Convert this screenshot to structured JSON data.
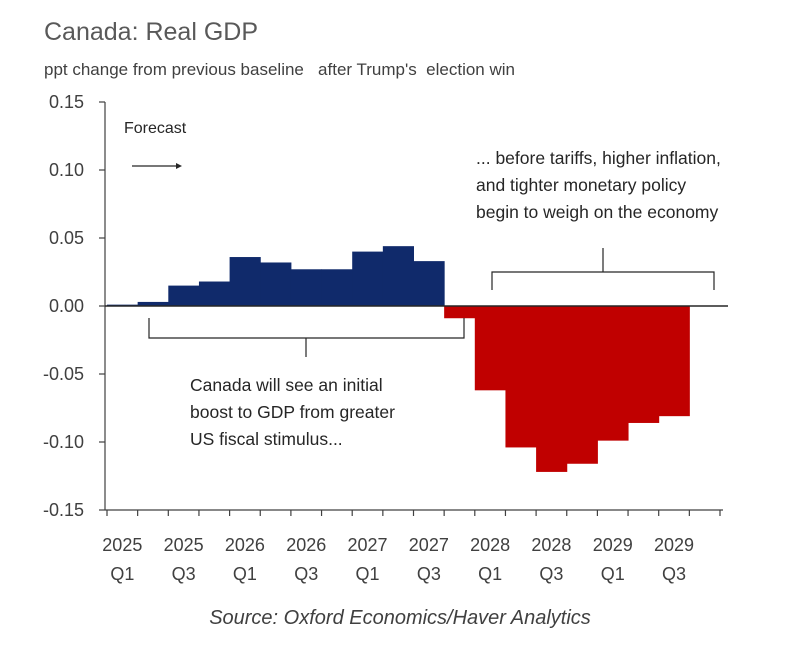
{
  "title": "Canada: Real GDP",
  "subtitle": "ppt change from previous baseline   after Trump's  election win",
  "source": "Source: Oxford Economics/Haver Analytics",
  "annotations": {
    "forecast": "Forecast",
    "left_lines": [
      "Canada will see an initial",
      "boost to GDP from greater",
      "US fiscal stimulus..."
    ],
    "right_lines": [
      "... before  tariffs, higher inflation,",
      "and tighter monetary policy",
      "begin to weigh on the economy"
    ]
  },
  "colors": {
    "positive": "#102a6b",
    "negative": "#c00000",
    "axis": "#404040"
  },
  "chart_data": {
    "type": "bar",
    "title": "Canada: Real GDP",
    "subtitle": "ppt change from previous baseline   after Trump's  election win",
    "ylim": [
      -0.15,
      0.15
    ],
    "yticks": [
      "0.15",
      "0.10",
      "0.05",
      "0.00",
      "-0.05",
      "-0.10",
      "-0.15"
    ],
    "ytick_values": [
      0.15,
      0.1,
      0.05,
      0.0,
      -0.05,
      -0.1,
      -0.15
    ],
    "xtick_labels": [
      [
        "2025",
        "Q1"
      ],
      [
        "2025",
        "Q3"
      ],
      [
        "2026",
        "Q1"
      ],
      [
        "2026",
        "Q3"
      ],
      [
        "2027",
        "Q1"
      ],
      [
        "2027",
        "Q3"
      ],
      [
        "2028",
        "Q1"
      ],
      [
        "2028",
        "Q3"
      ],
      [
        "2029",
        "Q1"
      ],
      [
        "2029",
        "Q3"
      ]
    ],
    "categories": [
      "2025 Q1",
      "2025 Q2",
      "2025 Q3",
      "2025 Q4",
      "2026 Q1",
      "2026 Q2",
      "2026 Q3",
      "2026 Q4",
      "2027 Q1",
      "2027 Q2",
      "2027 Q3",
      "2027 Q4",
      "2028 Q1",
      "2028 Q2",
      "2028 Q3",
      "2028 Q4",
      "2029 Q1",
      "2029 Q2",
      "2029 Q3",
      "2029 Q4"
    ],
    "values": [
      0.001,
      0.003,
      0.015,
      0.018,
      0.036,
      0.032,
      0.027,
      0.027,
      0.04,
      0.044,
      0.033,
      -0.009,
      -0.062,
      -0.104,
      -0.122,
      -0.116,
      -0.099,
      -0.086,
      -0.081,
      0.0
    ],
    "grid": false,
    "legend": "none"
  }
}
